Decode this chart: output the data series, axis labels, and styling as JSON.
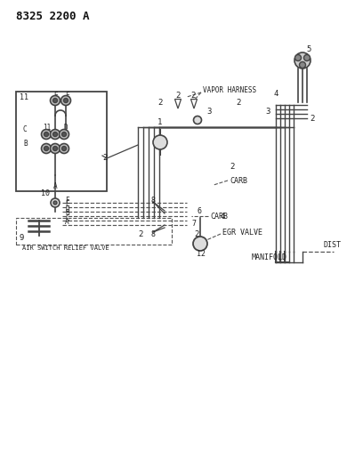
{
  "bg_color": "#ffffff",
  "line_color": "#444444",
  "text_color": "#222222",
  "fig_width": 4.08,
  "fig_height": 5.33,
  "dpi": 100,
  "title": "8325 2200 A",
  "vapor_harness": "VAPOR HARNESS",
  "carb_label": "CARB",
  "egr_valve": "EGR VALVE",
  "manifold": "MANIFOLD",
  "dist": "DIST",
  "air_switch": "AIR SWITCH RELIEF VALVE"
}
